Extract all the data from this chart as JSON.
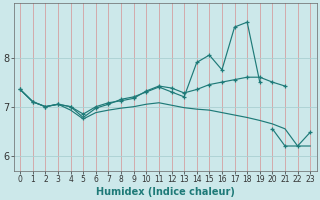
{
  "title": "",
  "xlabel": "Humidex (Indice chaleur)",
  "bg_color": "#cce8ea",
  "grid_color": "#aacfd2",
  "line_color": "#1e7a78",
  "xlim": [
    -0.5,
    23.5
  ],
  "ylim": [
    5.7,
    9.1
  ],
  "yticks": [
    6,
    7,
    8
  ],
  "xticks": [
    0,
    1,
    2,
    3,
    4,
    5,
    6,
    7,
    8,
    9,
    10,
    11,
    12,
    13,
    14,
    15,
    16,
    17,
    18,
    19,
    20,
    21,
    22,
    23
  ],
  "series": [
    {
      "y": [
        7.35,
        7.1,
        7.0,
        7.05,
        7.0,
        6.78,
        6.97,
        7.05,
        7.15,
        7.2,
        7.3,
        7.4,
        7.3,
        7.2,
        7.9,
        8.05,
        7.75,
        8.62,
        8.72,
        7.5,
        null,
        null,
        null,
        null
      ],
      "marker": true
    },
    {
      "y": [
        7.35,
        7.1,
        7.0,
        7.05,
        7.0,
        6.85,
        7.0,
        7.08,
        7.12,
        7.17,
        7.32,
        7.42,
        7.38,
        7.28,
        7.35,
        7.45,
        7.5,
        7.55,
        7.6,
        7.6,
        7.5,
        7.42,
        null,
        null
      ],
      "marker": true
    },
    {
      "y": [
        7.35,
        7.1,
        7.0,
        7.05,
        6.93,
        6.75,
        6.88,
        6.93,
        6.97,
        7.0,
        7.05,
        7.08,
        7.03,
        6.98,
        6.95,
        6.93,
        6.88,
        6.83,
        6.78,
        6.72,
        6.65,
        6.55,
        6.2,
        6.2
      ],
      "marker": false
    },
    {
      "y": [
        null,
        null,
        null,
        null,
        null,
        null,
        null,
        null,
        null,
        null,
        null,
        null,
        null,
        null,
        null,
        null,
        null,
        null,
        null,
        null,
        6.55,
        6.2,
        6.2,
        6.48
      ],
      "marker": true
    }
  ]
}
